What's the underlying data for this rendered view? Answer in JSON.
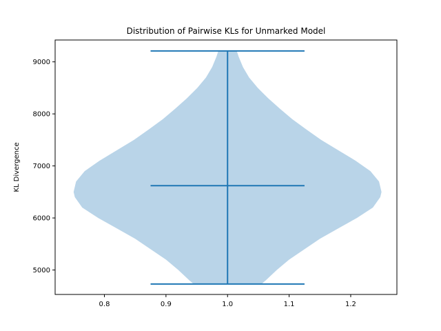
{
  "chart_data": {
    "type": "violin",
    "title": "Distribution of Pairwise KLs for Unmarked Model",
    "xlabel": "",
    "ylabel": "KL Divergence",
    "xlim": [
      0.72,
      1.275
    ],
    "ylim": [
      4530,
      9420
    ],
    "x_ticks": [
      0.8,
      0.9,
      1.0,
      1.1,
      1.2
    ],
    "x_tick_labels": [
      "0.8",
      "0.9",
      "1.0",
      "1.1",
      "1.2"
    ],
    "y_ticks": [
      5000,
      6000,
      7000,
      8000,
      9000
    ],
    "y_tick_labels": [
      "5000",
      "6000",
      "7000",
      "8000",
      "9000"
    ],
    "violin": {
      "position": 1.0,
      "min": 4730,
      "max": 9210,
      "mean": 6620,
      "cap_halfwidth": 0.125,
      "profile": [
        [
          4730,
          0.055
        ],
        [
          4800,
          0.062
        ],
        [
          5000,
          0.08
        ],
        [
          5200,
          0.1
        ],
        [
          5400,
          0.125
        ],
        [
          5600,
          0.15
        ],
        [
          5800,
          0.18
        ],
        [
          6000,
          0.21
        ],
        [
          6200,
          0.236
        ],
        [
          6400,
          0.248
        ],
        [
          6500,
          0.25
        ],
        [
          6700,
          0.246
        ],
        [
          6900,
          0.232
        ],
        [
          7100,
          0.208
        ],
        [
          7300,
          0.18
        ],
        [
          7500,
          0.152
        ],
        [
          7700,
          0.128
        ],
        [
          7900,
          0.105
        ],
        [
          8100,
          0.085
        ],
        [
          8300,
          0.066
        ],
        [
          8500,
          0.049
        ],
        [
          8700,
          0.035
        ],
        [
          8900,
          0.025
        ],
        [
          9100,
          0.018
        ],
        [
          9210,
          0.015
        ]
      ]
    },
    "colors": {
      "body": "#b9d4e8",
      "lines": "#1f77b4"
    }
  }
}
